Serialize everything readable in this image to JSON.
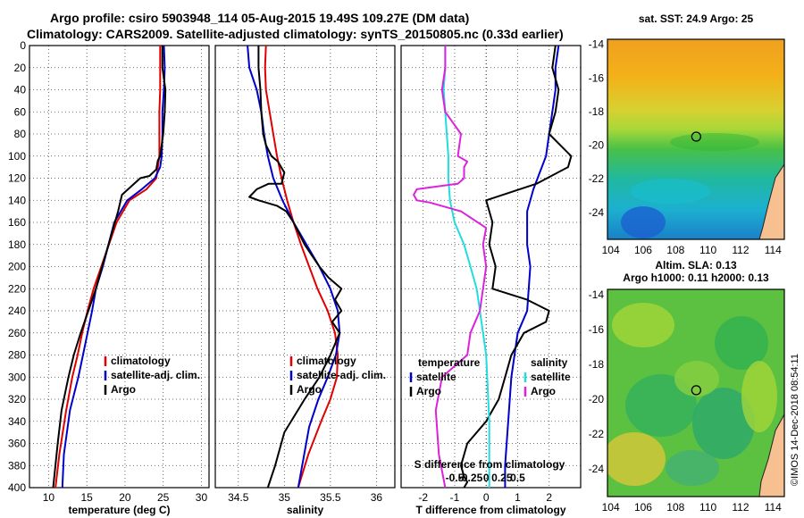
{
  "header": {
    "line1": "Argo profile: csiro 5903948_114 05-Aug-2015 19.49S 109.27E (DM data)",
    "line2": "Climatology: CARS2009. Satellite-adjusted climatology: synTS_20150805.nc (0.33d earlier)"
  },
  "colors": {
    "climatology": "#e00000",
    "satellite": "#0000cc",
    "argo": "#000000",
    "sat_s_diff": "#22dddd",
    "argo_s_diff": "#dd22dd"
  },
  "chart_data": [
    {
      "type": "line",
      "xlabel": "temperature (deg C)",
      "ylabel": "",
      "xlim": [
        7.5,
        31
      ],
      "ylim": [
        400,
        0
      ],
      "xticks": [
        10,
        15,
        20,
        25,
        30
      ],
      "yticks": [
        0,
        20,
        40,
        60,
        80,
        100,
        120,
        140,
        160,
        180,
        200,
        220,
        240,
        260,
        280,
        300,
        320,
        340,
        360,
        380,
        400
      ],
      "legend": {
        "placement": "lower-right",
        "items": [
          "climatology",
          "satellite-adj. clim.",
          "Argo"
        ]
      },
      "series": [
        {
          "name": "climatology",
          "color": "#e00000",
          "x": [
            24.6,
            24.6,
            24.6,
            24.5,
            24.5,
            24.5,
            24.3,
            24.1,
            22.8,
            20.6,
            18.9,
            16.9,
            15.9,
            15.1,
            14.4,
            13.8,
            13.1,
            12.3,
            11.4,
            10.9
          ],
          "y": [
            0,
            20,
            40,
            60,
            80,
            100,
            110,
            120,
            130,
            140,
            160,
            200,
            220,
            240,
            260,
            280,
            300,
            330,
            370,
            400
          ]
        },
        {
          "name": "satellite-adj. clim.",
          "color": "#0000cc",
          "x": [
            25.1,
            25.2,
            25.1,
            24.9,
            24.9,
            24.8,
            24.6,
            23.9,
            22.2,
            20.3,
            18.6,
            17.1,
            16.2,
            15.7,
            15.1,
            14.5,
            13.9,
            12.8,
            12.0,
            11.8
          ],
          "y": [
            0,
            20,
            40,
            60,
            80,
            100,
            110,
            120,
            130,
            140,
            160,
            200,
            220,
            240,
            260,
            280,
            300,
            330,
            370,
            400
          ]
        },
        {
          "name": "Argo",
          "color": "#000000",
          "x": [
            24.9,
            24.9,
            25.3,
            25.2,
            25.0,
            24.6,
            24.3,
            24.1,
            23.2,
            22.0,
            19.6,
            19.1,
            17.0,
            16.2,
            15.2,
            14.2,
            13.3,
            12.6,
            11.7,
            11.2,
            10.6
          ],
          "y": [
            0,
            20,
            40,
            60,
            80,
            100,
            104,
            112,
            118,
            120,
            135,
            150,
            200,
            220,
            240,
            260,
            280,
            300,
            330,
            360,
            400
          ]
        }
      ]
    },
    {
      "type": "line",
      "xlabel": "salinity",
      "ylabel": "",
      "xlim": [
        34.25,
        36.2
      ],
      "ylim": [
        400,
        0
      ],
      "xticks": [
        34.5,
        35,
        35.5,
        36
      ],
      "legend": {
        "placement": "lower-right",
        "items": [
          "climatology",
          "satellite-adj. clim.",
          "Argo"
        ]
      },
      "series": [
        {
          "name": "climatology",
          "color": "#e00000",
          "x": [
            34.8,
            34.79,
            34.8,
            34.84,
            34.88,
            34.92,
            34.97,
            35.03,
            35.1,
            35.18,
            35.27,
            35.36,
            35.47,
            35.55,
            35.58,
            35.57,
            35.5,
            35.4,
            35.26,
            35.15
          ],
          "y": [
            0,
            20,
            40,
            60,
            80,
            100,
            120,
            140,
            160,
            180,
            200,
            220,
            240,
            260,
            280,
            300,
            320,
            340,
            370,
            400
          ]
        },
        {
          "name": "satellite-adj. clim.",
          "color": "#0000cc",
          "x": [
            34.6,
            34.62,
            34.7,
            34.75,
            34.78,
            34.82,
            34.88,
            34.98,
            35.1,
            35.24,
            35.38,
            35.5,
            35.58,
            35.6,
            35.56,
            35.47,
            35.37,
            35.27,
            35.15
          ],
          "y": [
            0,
            20,
            40,
            60,
            80,
            100,
            120,
            140,
            160,
            180,
            200,
            220,
            240,
            260,
            280,
            300,
            320,
            345,
            400
          ]
        },
        {
          "name": "Argo",
          "color": "#000000",
          "x": [
            34.72,
            34.72,
            34.74,
            34.75,
            34.77,
            34.8,
            34.86,
            34.93,
            35.0,
            34.97,
            34.83,
            34.7,
            34.62,
            34.72,
            34.92,
            35.02,
            35.1,
            35.22,
            35.38,
            35.48,
            35.62,
            35.55,
            35.62,
            35.52,
            35.6,
            35.5,
            35.38,
            35.22,
            35.0,
            34.9,
            34.82
          ],
          "y": [
            0,
            20,
            40,
            60,
            80,
            90,
            100,
            105,
            115,
            125,
            125,
            130,
            137,
            140,
            145,
            150,
            160,
            180,
            200,
            210,
            220,
            230,
            240,
            250,
            260,
            280,
            300,
            320,
            350,
            380,
            400
          ]
        }
      ]
    },
    {
      "type": "line",
      "xlabel": "T difference from climatology",
      "xlabel2": "S difference from climatology",
      "xlim": [
        -2.7,
        3.0
      ],
      "ylim": [
        400,
        0
      ],
      "xticks": [
        -2,
        -1,
        0,
        1,
        2
      ],
      "xticks2": [
        "-0.5",
        "-0.25",
        "0",
        "0.25",
        "0.5"
      ],
      "xticks2_pos": [
        -1.0,
        -0.5,
        0,
        0.5,
        1.0
      ],
      "legend": {
        "placement": "lower",
        "left_title": "temperature",
        "right_title": "salinity",
        "items": [
          "satellite",
          "Argo"
        ]
      },
      "series": [
        {
          "name": "temperature satellite",
          "color": "#0000cc",
          "x": [
            2.3,
            2.2,
            2.2,
            2.1,
            2.0,
            1.9,
            1.5,
            1.3,
            1.3,
            1.4,
            1.3,
            1.0,
            0.8,
            0.7,
            0.6,
            0.6
          ],
          "y": [
            0,
            20,
            40,
            60,
            80,
            100,
            130,
            150,
            180,
            200,
            240,
            260,
            300,
            340,
            380,
            400
          ]
        },
        {
          "name": "temperature Argo",
          "color": "#000000",
          "x": [
            2.2,
            2.1,
            2.3,
            2.2,
            2.0,
            2.7,
            2.6,
            1.6,
            0.0,
            0.2,
            0.1,
            0.3,
            0.2,
            1.3,
            2.0,
            1.9,
            1.2,
            0.8,
            0.6,
            0.4,
            0.0,
            -0.6,
            -0.8,
            -0.7,
            -0.6,
            -0.7
          ],
          "y": [
            0,
            20,
            40,
            60,
            80,
            100,
            110,
            125,
            140,
            160,
            180,
            200,
            220,
            230,
            240,
            250,
            260,
            280,
            300,
            320,
            340,
            360,
            380,
            390,
            395,
            400
          ]
        },
        {
          "name": "salinity satellite",
          "color": "#22dddd",
          "x": [
            -1.3,
            -1.3,
            -1.35,
            -1.3,
            -1.25,
            -1.2,
            -1.2,
            -1.15,
            -1.0,
            -0.7,
            -0.5,
            -0.3,
            -0.2,
            0.0,
            0.1,
            0.1
          ],
          "y": [
            0,
            20,
            40,
            60,
            80,
            100,
            120,
            140,
            160,
            180,
            200,
            220,
            240,
            280,
            340,
            400
          ]
        },
        {
          "name": "salinity Argo",
          "color": "#dd22dd",
          "x": [
            -1.3,
            -1.3,
            -1.4,
            -1.3,
            -0.8,
            -0.9,
            -0.6,
            -0.7,
            -0.7,
            -0.9,
            -2.2,
            -2.3,
            -2.2,
            -1.8,
            -0.8,
            0.0,
            -0.1,
            0.0,
            -0.2,
            -0.5,
            -0.6,
            -1.4,
            -1.6,
            -1.5,
            -1.3
          ],
          "y": [
            0,
            20,
            40,
            60,
            80,
            100,
            105,
            110,
            120,
            125,
            130,
            135,
            140,
            142,
            150,
            165,
            180,
            200,
            240,
            260,
            280,
            300,
            330,
            370,
            400
          ]
        }
      ]
    },
    {
      "type": "heatmap",
      "title": "sat. SST: 24.9 Argo: 25",
      "xticks": [
        104,
        106,
        108,
        110,
        112,
        114
      ],
      "yticks": [
        -14,
        -16,
        -18,
        -20,
        -22,
        -24
      ],
      "xlim": [
        103.8,
        114.7
      ],
      "ylim": [
        -25.6,
        -13.7
      ],
      "marker": {
        "lon": 109.27,
        "lat": -19.49
      }
    },
    {
      "type": "heatmap",
      "title": "Altim. SLA: 0.13",
      "subtitle": "Argo h1000: 0.11 h2000: 0.13",
      "xticks": [
        104,
        106,
        108,
        110,
        112,
        114
      ],
      "yticks": [
        -14,
        -16,
        -18,
        -20,
        -22,
        -24
      ],
      "xlim": [
        103.8,
        114.7
      ],
      "ylim": [
        -25.6,
        -13.7
      ],
      "marker": {
        "lon": 109.27,
        "lat": -19.49
      }
    }
  ],
  "watermark": "©IMOS 14-Dec-2018 08:54:11"
}
